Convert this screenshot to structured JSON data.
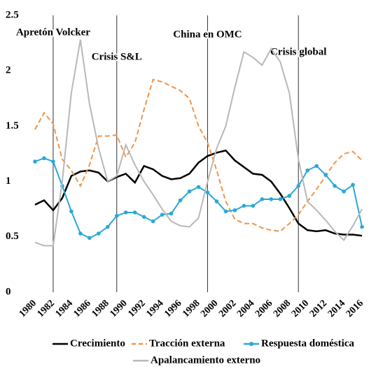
{
  "chart_data": {
    "type": "line",
    "x": [
      1980,
      1981,
      1982,
      1983,
      1984,
      1985,
      1986,
      1987,
      1988,
      1989,
      1990,
      1991,
      1992,
      1993,
      1994,
      1995,
      1996,
      1997,
      1998,
      1999,
      2000,
      2001,
      2002,
      2003,
      2004,
      2005,
      2006,
      2007,
      2008,
      2009,
      2010,
      2011,
      2012,
      2013,
      2014,
      2015,
      2016
    ],
    "xlim": [
      1980,
      2016
    ],
    "xticks": [
      1980,
      1982,
      1984,
      1986,
      1988,
      1990,
      1992,
      1994,
      1996,
      1998,
      2000,
      2002,
      2004,
      2006,
      2008,
      2010,
      2012,
      2014,
      2016
    ],
    "ylim": [
      0,
      2.5
    ],
    "yticks": [
      0,
      0.5,
      1,
      1.5,
      2,
      2.5
    ],
    "series": [
      {
        "name": "Crecimiento",
        "color": "#000000",
        "style": "solid",
        "markers": false,
        "values": [
          0.79,
          0.83,
          0.74,
          0.85,
          1.05,
          1.09,
          1.1,
          1.08,
          1.0,
          1.04,
          1.07,
          0.99,
          1.14,
          1.11,
          1.05,
          1.02,
          1.03,
          1.07,
          1.17,
          1.23,
          1.26,
          1.28,
          1.19,
          1.13,
          1.07,
          1.06,
          1.0,
          0.89,
          0.76,
          0.62,
          0.56,
          0.55,
          0.56,
          0.53,
          0.52,
          0.52,
          0.51
        ]
      },
      {
        "name": "Tracción externa",
        "color": "#f0954a",
        "style": "dashed",
        "markers": false,
        "values": [
          1.47,
          1.62,
          1.52,
          1.2,
          1.1,
          0.96,
          1.15,
          1.41,
          1.41,
          1.42,
          1.22,
          1.35,
          1.65,
          1.92,
          1.9,
          1.86,
          1.82,
          1.75,
          1.5,
          1.35,
          1.1,
          0.82,
          0.66,
          0.62,
          0.62,
          0.58,
          0.56,
          0.55,
          0.62,
          0.7,
          0.82,
          0.93,
          1.05,
          1.17,
          1.25,
          1.27,
          1.19
        ]
      },
      {
        "name": "Respuesta doméstica",
        "color": "#2aa8d8",
        "style": "solid",
        "markers": true,
        "values": [
          1.18,
          1.21,
          1.18,
          0.96,
          0.73,
          0.53,
          0.49,
          0.53,
          0.59,
          0.69,
          0.72,
          0.72,
          0.68,
          0.64,
          0.7,
          0.71,
          0.83,
          0.91,
          0.95,
          0.9,
          0.82,
          0.73,
          0.74,
          0.78,
          0.78,
          0.84,
          0.84,
          0.84,
          0.87,
          0.96,
          1.1,
          1.14,
          1.06,
          0.96,
          0.91,
          0.97,
          0.59
        ]
      },
      {
        "name": "Apalancamiento externo",
        "color": "#b8b8b8",
        "style": "solid",
        "markers": false,
        "values": [
          0.45,
          0.42,
          0.42,
          1.0,
          1.8,
          2.28,
          1.7,
          1.3,
          1.0,
          1.05,
          1.33,
          1.15,
          1.0,
          0.88,
          0.75,
          0.64,
          0.6,
          0.59,
          0.67,
          1.0,
          1.3,
          1.5,
          1.85,
          2.17,
          2.12,
          2.05,
          2.2,
          2.08,
          1.8,
          1.2,
          0.82,
          0.74,
          0.65,
          0.55,
          0.47,
          0.6,
          0.75
        ]
      }
    ],
    "annotations": [
      {
        "text": "Apretón Volcker",
        "x": 1982
      },
      {
        "text": "Crisis S&L",
        "x": 1989
      },
      {
        "text": "China en OMC",
        "x": 1999
      },
      {
        "text": "Crisis global",
        "x": 2009
      }
    ]
  }
}
